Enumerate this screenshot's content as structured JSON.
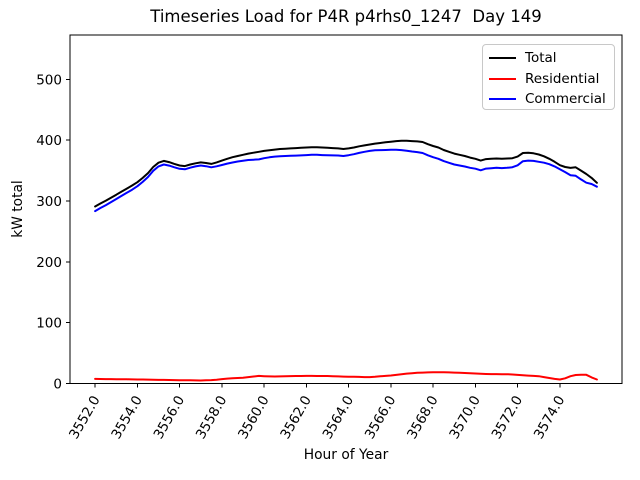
{
  "title": "Timeseries Load for P4R p4rhs0_1247  Day 149",
  "chart_data": {
    "type": "line",
    "title": "Timeseries Load for P4R p4rhs0_1247  Day 149",
    "xlabel": "Hour of Year",
    "ylabel": "kW total",
    "xlim": [
      3550.81,
      3576.94
    ],
    "ylim": [
      0,
      573
    ],
    "x_tick_labels": [
      "3552.0",
      "3554.0",
      "3556.0",
      "3558.0",
      "3560.0",
      "3562.0",
      "3564.0",
      "3566.0",
      "3568.0",
      "3570.0",
      "3572.0",
      "3574.0"
    ],
    "y_tick_labels": [
      "0",
      "100",
      "200",
      "300",
      "400",
      "500"
    ],
    "x_tick_rotation_deg": 60,
    "grid": false,
    "legend_position": "upper right",
    "x_start": 3552.0,
    "x_step": 0.25,
    "series": [
      {
        "name": "Total",
        "color": "#000000",
        "values": [
          291,
          296,
          300.5,
          305.5,
          310.5,
          315.5,
          320.5,
          325.5,
          331,
          338,
          346,
          356,
          363,
          366,
          364,
          361,
          358.5,
          357.5,
          360,
          362,
          363.5,
          362.5,
          361,
          363.5,
          366.5,
          369.5,
          372,
          374,
          376,
          378,
          379.5,
          381,
          382.5,
          383.5,
          384.5,
          385.5,
          386,
          386.5,
          387,
          387.5,
          388,
          388.5,
          388.5,
          388,
          387.5,
          387,
          386.5,
          385.5,
          386.5,
          388,
          390,
          391.5,
          393,
          394.5,
          395.5,
          396.5,
          397.5,
          398.5,
          399,
          399,
          398.5,
          398,
          397,
          393.5,
          390.5,
          388,
          384,
          381,
          378,
          376,
          374,
          371.5,
          369.5,
          366.5,
          369,
          369.5,
          370,
          369.5,
          370,
          370.5,
          373,
          379,
          379.5,
          378.5,
          376.5,
          373.5,
          369.5,
          364.5,
          359,
          356,
          354.5,
          355.5,
          350,
          344.5,
          338,
          330
        ]
      },
      {
        "name": "Residential",
        "color": "#ff0000",
        "values": [
          7.5,
          7.4,
          7.3,
          7.2,
          7.1,
          7.0,
          6.9,
          6.8,
          6.6,
          6.5,
          6.4,
          6.2,
          6.0,
          5.9,
          5.7,
          5.6,
          5.5,
          5.3,
          5.2,
          5.1,
          5.0,
          5.2,
          5.6,
          6.3,
          7.2,
          8.0,
          8.6,
          9.0,
          9.6,
          10.5,
          11.5,
          12.5,
          12.0,
          11.6,
          11.5,
          11.7,
          12.0,
          12.2,
          12.3,
          12.4,
          12.5,
          12.5,
          12.4,
          12.4,
          12.3,
          12.0,
          11.7,
          11.4,
          11.2,
          11.0,
          10.8,
          10.6,
          10.5,
          11.0,
          11.8,
          12.5,
          13.2,
          14.2,
          15.2,
          16.2,
          17.0,
          17.6,
          18.0,
          18.3,
          18.5,
          18.5,
          18.4,
          18.2,
          18.0,
          17.6,
          17.2,
          16.8,
          16.4,
          16.0,
          15.7,
          15.5,
          15.4,
          15.3,
          15.3,
          14.8,
          14.2,
          13.5,
          13.0,
          12.5,
          12.0,
          10.5,
          9.0,
          7.5,
          6.6,
          8.5,
          12.0,
          14.0,
          14.5,
          14.3,
          10.0,
          6.5
        ]
      },
      {
        "name": "Commercial",
        "color": "#0000ff",
        "values": [
          283.5,
          288.6,
          293.2,
          298.3,
          303.4,
          308.5,
          313.6,
          318.7,
          324.4,
          331.5,
          339.6,
          349.8,
          357.0,
          360.1,
          358.3,
          355.4,
          353.0,
          352.2,
          354.8,
          356.9,
          358.5,
          357.3,
          355.4,
          357.2,
          359.3,
          361.5,
          363.4,
          365.0,
          366.4,
          367.5,
          368.0,
          368.5,
          370.5,
          371.9,
          373.0,
          373.8,
          374.0,
          374.3,
          374.7,
          375.1,
          375.5,
          376.0,
          376.1,
          375.6,
          375.2,
          375.0,
          374.8,
          374.1,
          375.3,
          377.0,
          379.2,
          380.9,
          382.5,
          383.5,
          383.7,
          384.0,
          384.3,
          384.3,
          383.8,
          382.8,
          381.5,
          380.4,
          379.0,
          375.2,
          372.0,
          369.5,
          365.6,
          362.8,
          360.0,
          358.4,
          356.8,
          354.7,
          353.1,
          350.5,
          353.3,
          354.0,
          354.6,
          354.2,
          354.7,
          355.7,
          358.8,
          365.5,
          366.5,
          366.0,
          364.5,
          363.0,
          360.5,
          357.0,
          352.4,
          347.5,
          342.5,
          341.5,
          335.5,
          330.2,
          328.0,
          323.5
        ]
      }
    ]
  }
}
